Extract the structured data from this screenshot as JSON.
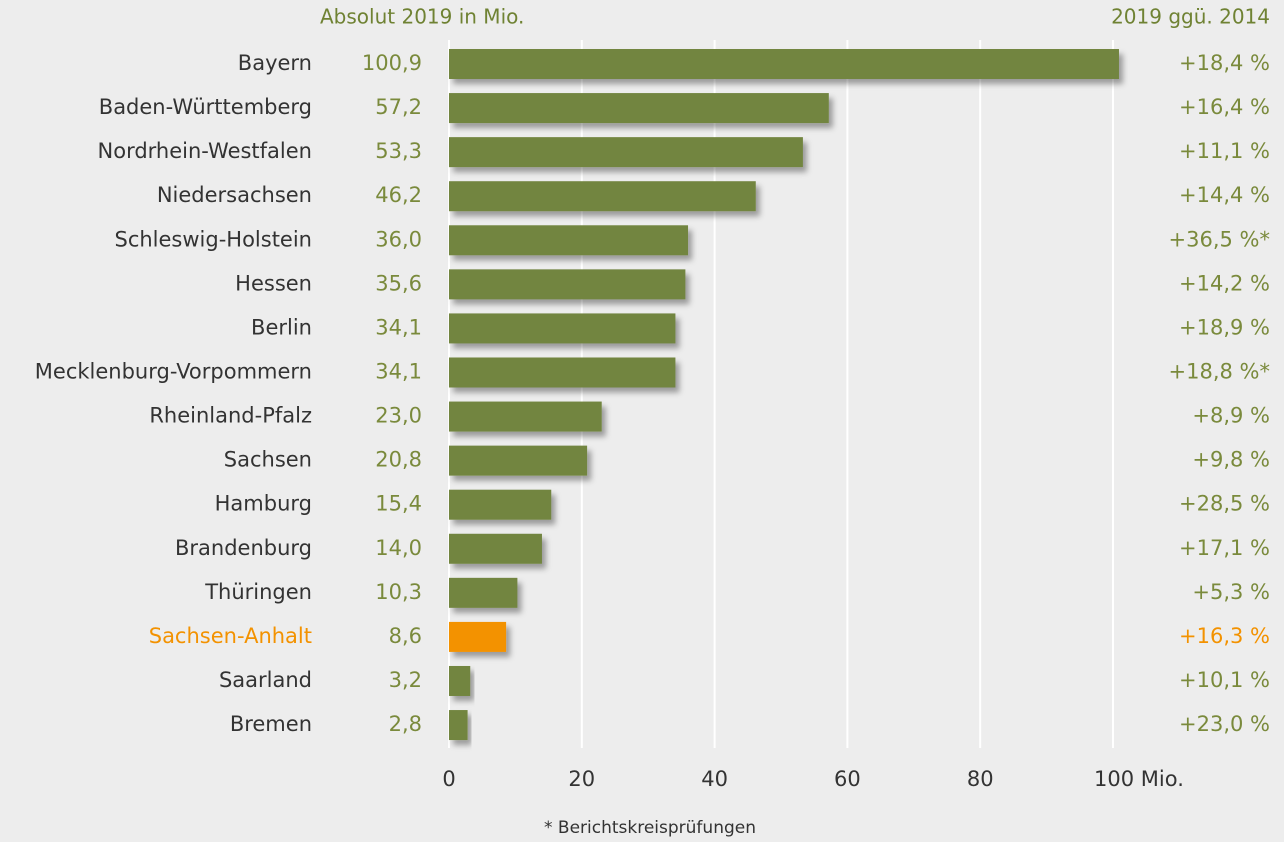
{
  "chart_data": {
    "type": "bar",
    "orientation": "horizontal",
    "value_header": "Absolut 2019 in Mio.",
    "change_header": "2019 ggü. 2014",
    "categories": [
      "Bayern",
      "Baden-Württemberg",
      "Nordrhein-Westfalen",
      "Niedersachsen",
      "Schleswig-Holstein",
      "Hessen",
      "Berlin",
      "Mecklenburg-Vorpommern",
      "Rheinland-Pfalz",
      "Sachsen",
      "Hamburg",
      "Brandenburg",
      "Thüringen",
      "Sachsen-Anhalt",
      "Saarland",
      "Bremen"
    ],
    "values": [
      100.9,
      57.2,
      53.3,
      46.2,
      36.0,
      35.6,
      34.1,
      34.1,
      23.0,
      20.8,
      15.4,
      14.0,
      10.3,
      8.6,
      3.2,
      2.8
    ],
    "value_labels": [
      "100,9",
      "57,2",
      "53,3",
      "46,2",
      "36,0",
      "35,6",
      "34,1",
      "34,1",
      "23,0",
      "20,8",
      "15,4",
      "14,0",
      "10,3",
      "8,6",
      "3,2",
      "2,8"
    ],
    "changes": [
      "+18,4 %",
      "+16,4 %",
      "+11,1 %",
      "+14,4 %",
      "+36,5 %*",
      "+14,2 %",
      "+18,9 %",
      "+18,8 %*",
      "+8,9 %",
      "+9,8 %",
      "+28,5 %",
      "+17,1 %",
      "+5,3 %",
      "+16,3 %",
      "+10,1 %",
      "+23,0 %"
    ],
    "colors": [
      "#728540",
      "#728540",
      "#728540",
      "#728540",
      "#728540",
      "#728540",
      "#728540",
      "#728540",
      "#728540",
      "#728540",
      "#728540",
      "#728540",
      "#728540",
      "#f39200",
      "#728540",
      "#728540"
    ],
    "xlim": [
      0,
      100
    ],
    "xticks": [
      0,
      20,
      40,
      60,
      80,
      {
        "value": 100,
        "label": "100 Mio."
      }
    ],
    "grid": true,
    "footnote": "* Berichtskreisprüfungen"
  }
}
